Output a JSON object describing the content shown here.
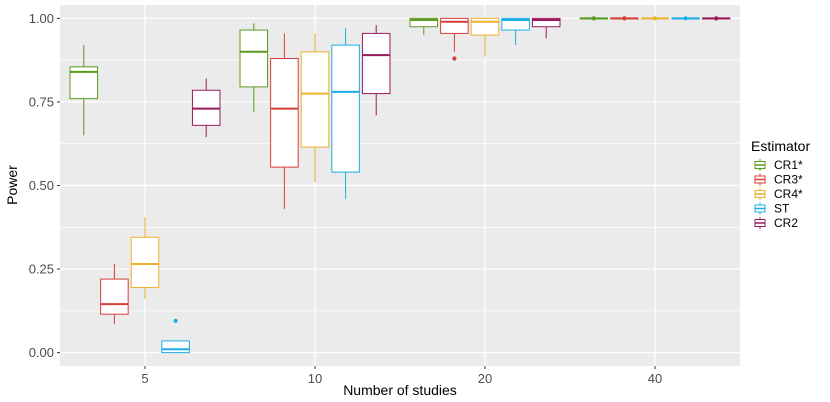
{
  "chart_data": {
    "type": "boxplot",
    "title": "",
    "xlabel": "Number of studies",
    "ylabel": "Power",
    "ylim": [
      -0.04,
      1.04
    ],
    "y_ticks": [
      0.0,
      0.25,
      0.5,
      0.75,
      1.0
    ],
    "y_tick_labels": [
      "0.00",
      "0.25",
      "0.50",
      "0.75",
      "1.00"
    ],
    "categories": [
      "5",
      "10",
      "20",
      "40"
    ],
    "legend_title": "Estimator",
    "legend_position": "right",
    "grid": true,
    "series": [
      {
        "name": "CR1*",
        "color": "#5a9a1c",
        "boxes": [
          {
            "whisker_low": 0.65,
            "q1": 0.76,
            "median": 0.84,
            "q3": 0.855,
            "whisker_high": 0.92,
            "outliers": []
          },
          {
            "whisker_low": 0.72,
            "q1": 0.795,
            "median": 0.9,
            "q3": 0.965,
            "whisker_high": 0.985,
            "outliers": []
          },
          {
            "whisker_low": 0.95,
            "q1": 0.975,
            "median": 0.995,
            "q3": 1.0,
            "whisker_high": 1.0,
            "outliers": []
          },
          {
            "whisker_low": 1.0,
            "q1": 1.0,
            "median": 1.0,
            "q3": 1.0,
            "whisker_high": 1.0,
            "outliers": [
              1.0
            ]
          }
        ]
      },
      {
        "name": "CR3*",
        "color": "#d43f3a",
        "boxes": [
          {
            "whisker_low": 0.085,
            "q1": 0.115,
            "median": 0.145,
            "q3": 0.22,
            "whisker_high": 0.265,
            "outliers": []
          },
          {
            "whisker_low": 0.43,
            "q1": 0.555,
            "median": 0.73,
            "q3": 0.88,
            "whisker_high": 0.955,
            "outliers": []
          },
          {
            "whisker_low": 0.9,
            "q1": 0.955,
            "median": 0.99,
            "q3": 1.0,
            "whisker_high": 1.0,
            "outliers": [
              0.88
            ]
          },
          {
            "whisker_low": 1.0,
            "q1": 1.0,
            "median": 1.0,
            "q3": 1.0,
            "whisker_high": 1.0,
            "outliers": [
              1.0
            ]
          }
        ]
      },
      {
        "name": "CR4*",
        "color": "#eeb12b",
        "boxes": [
          {
            "whisker_low": 0.16,
            "q1": 0.195,
            "median": 0.265,
            "q3": 0.345,
            "whisker_high": 0.405,
            "outliers": []
          },
          {
            "whisker_low": 0.51,
            "q1": 0.615,
            "median": 0.775,
            "q3": 0.9,
            "whisker_high": 0.955,
            "outliers": []
          },
          {
            "whisker_low": 0.885,
            "q1": 0.95,
            "median": 0.99,
            "q3": 1.0,
            "whisker_high": 1.0,
            "outliers": []
          },
          {
            "whisker_low": 1.0,
            "q1": 1.0,
            "median": 1.0,
            "q3": 1.0,
            "whisker_high": 1.0,
            "outliers": [
              1.0
            ]
          }
        ]
      },
      {
        "name": "ST",
        "color": "#1aaee6",
        "boxes": [
          {
            "whisker_low": 0.0,
            "q1": 0.0,
            "median": 0.01,
            "q3": 0.035,
            "whisker_high": 0.035,
            "outliers": [
              0.095
            ]
          },
          {
            "whisker_low": 0.46,
            "q1": 0.54,
            "median": 0.78,
            "q3": 0.92,
            "whisker_high": 0.97,
            "outliers": []
          },
          {
            "whisker_low": 0.92,
            "q1": 0.965,
            "median": 0.995,
            "q3": 1.0,
            "whisker_high": 1.0,
            "outliers": []
          },
          {
            "whisker_low": 1.0,
            "q1": 1.0,
            "median": 1.0,
            "q3": 1.0,
            "whisker_high": 1.0,
            "outliers": [
              1.0
            ]
          }
        ]
      },
      {
        "name": "CR2",
        "color": "#99195a",
        "boxes": [
          {
            "whisker_low": 0.645,
            "q1": 0.68,
            "median": 0.73,
            "q3": 0.785,
            "whisker_high": 0.82,
            "outliers": []
          },
          {
            "whisker_low": 0.71,
            "q1": 0.775,
            "median": 0.89,
            "q3": 0.955,
            "whisker_high": 0.98,
            "outliers": []
          },
          {
            "whisker_low": 0.94,
            "q1": 0.975,
            "median": 0.995,
            "q3": 1.0,
            "whisker_high": 1.0,
            "outliers": []
          },
          {
            "whisker_low": 1.0,
            "q1": 1.0,
            "median": 1.0,
            "q3": 1.0,
            "whisker_high": 1.0,
            "outliers": [
              1.0
            ]
          }
        ]
      }
    ]
  }
}
